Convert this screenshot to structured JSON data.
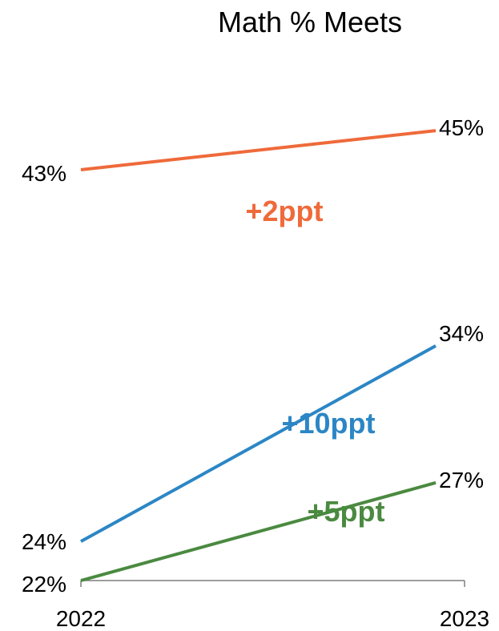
{
  "chart_data": {
    "type": "line",
    "title": "Math % Meets",
    "x": [
      "2022",
      "2023"
    ],
    "ylim": [
      22,
      50
    ],
    "grid": false,
    "series": [
      {
        "values": [
          43,
          45
        ],
        "labels": [
          "43%",
          "45%"
        ],
        "change": "+2ppt",
        "color": "#ef6a3a"
      },
      {
        "values": [
          24,
          34
        ],
        "labels": [
          "24%",
          "34%"
        ],
        "change": "+10ppt",
        "color": "#2c86c5"
      },
      {
        "values": [
          22,
          27
        ],
        "labels": [
          "22%",
          "27%"
        ],
        "change": "+5ppt",
        "color": "#4a8a40"
      }
    ]
  }
}
